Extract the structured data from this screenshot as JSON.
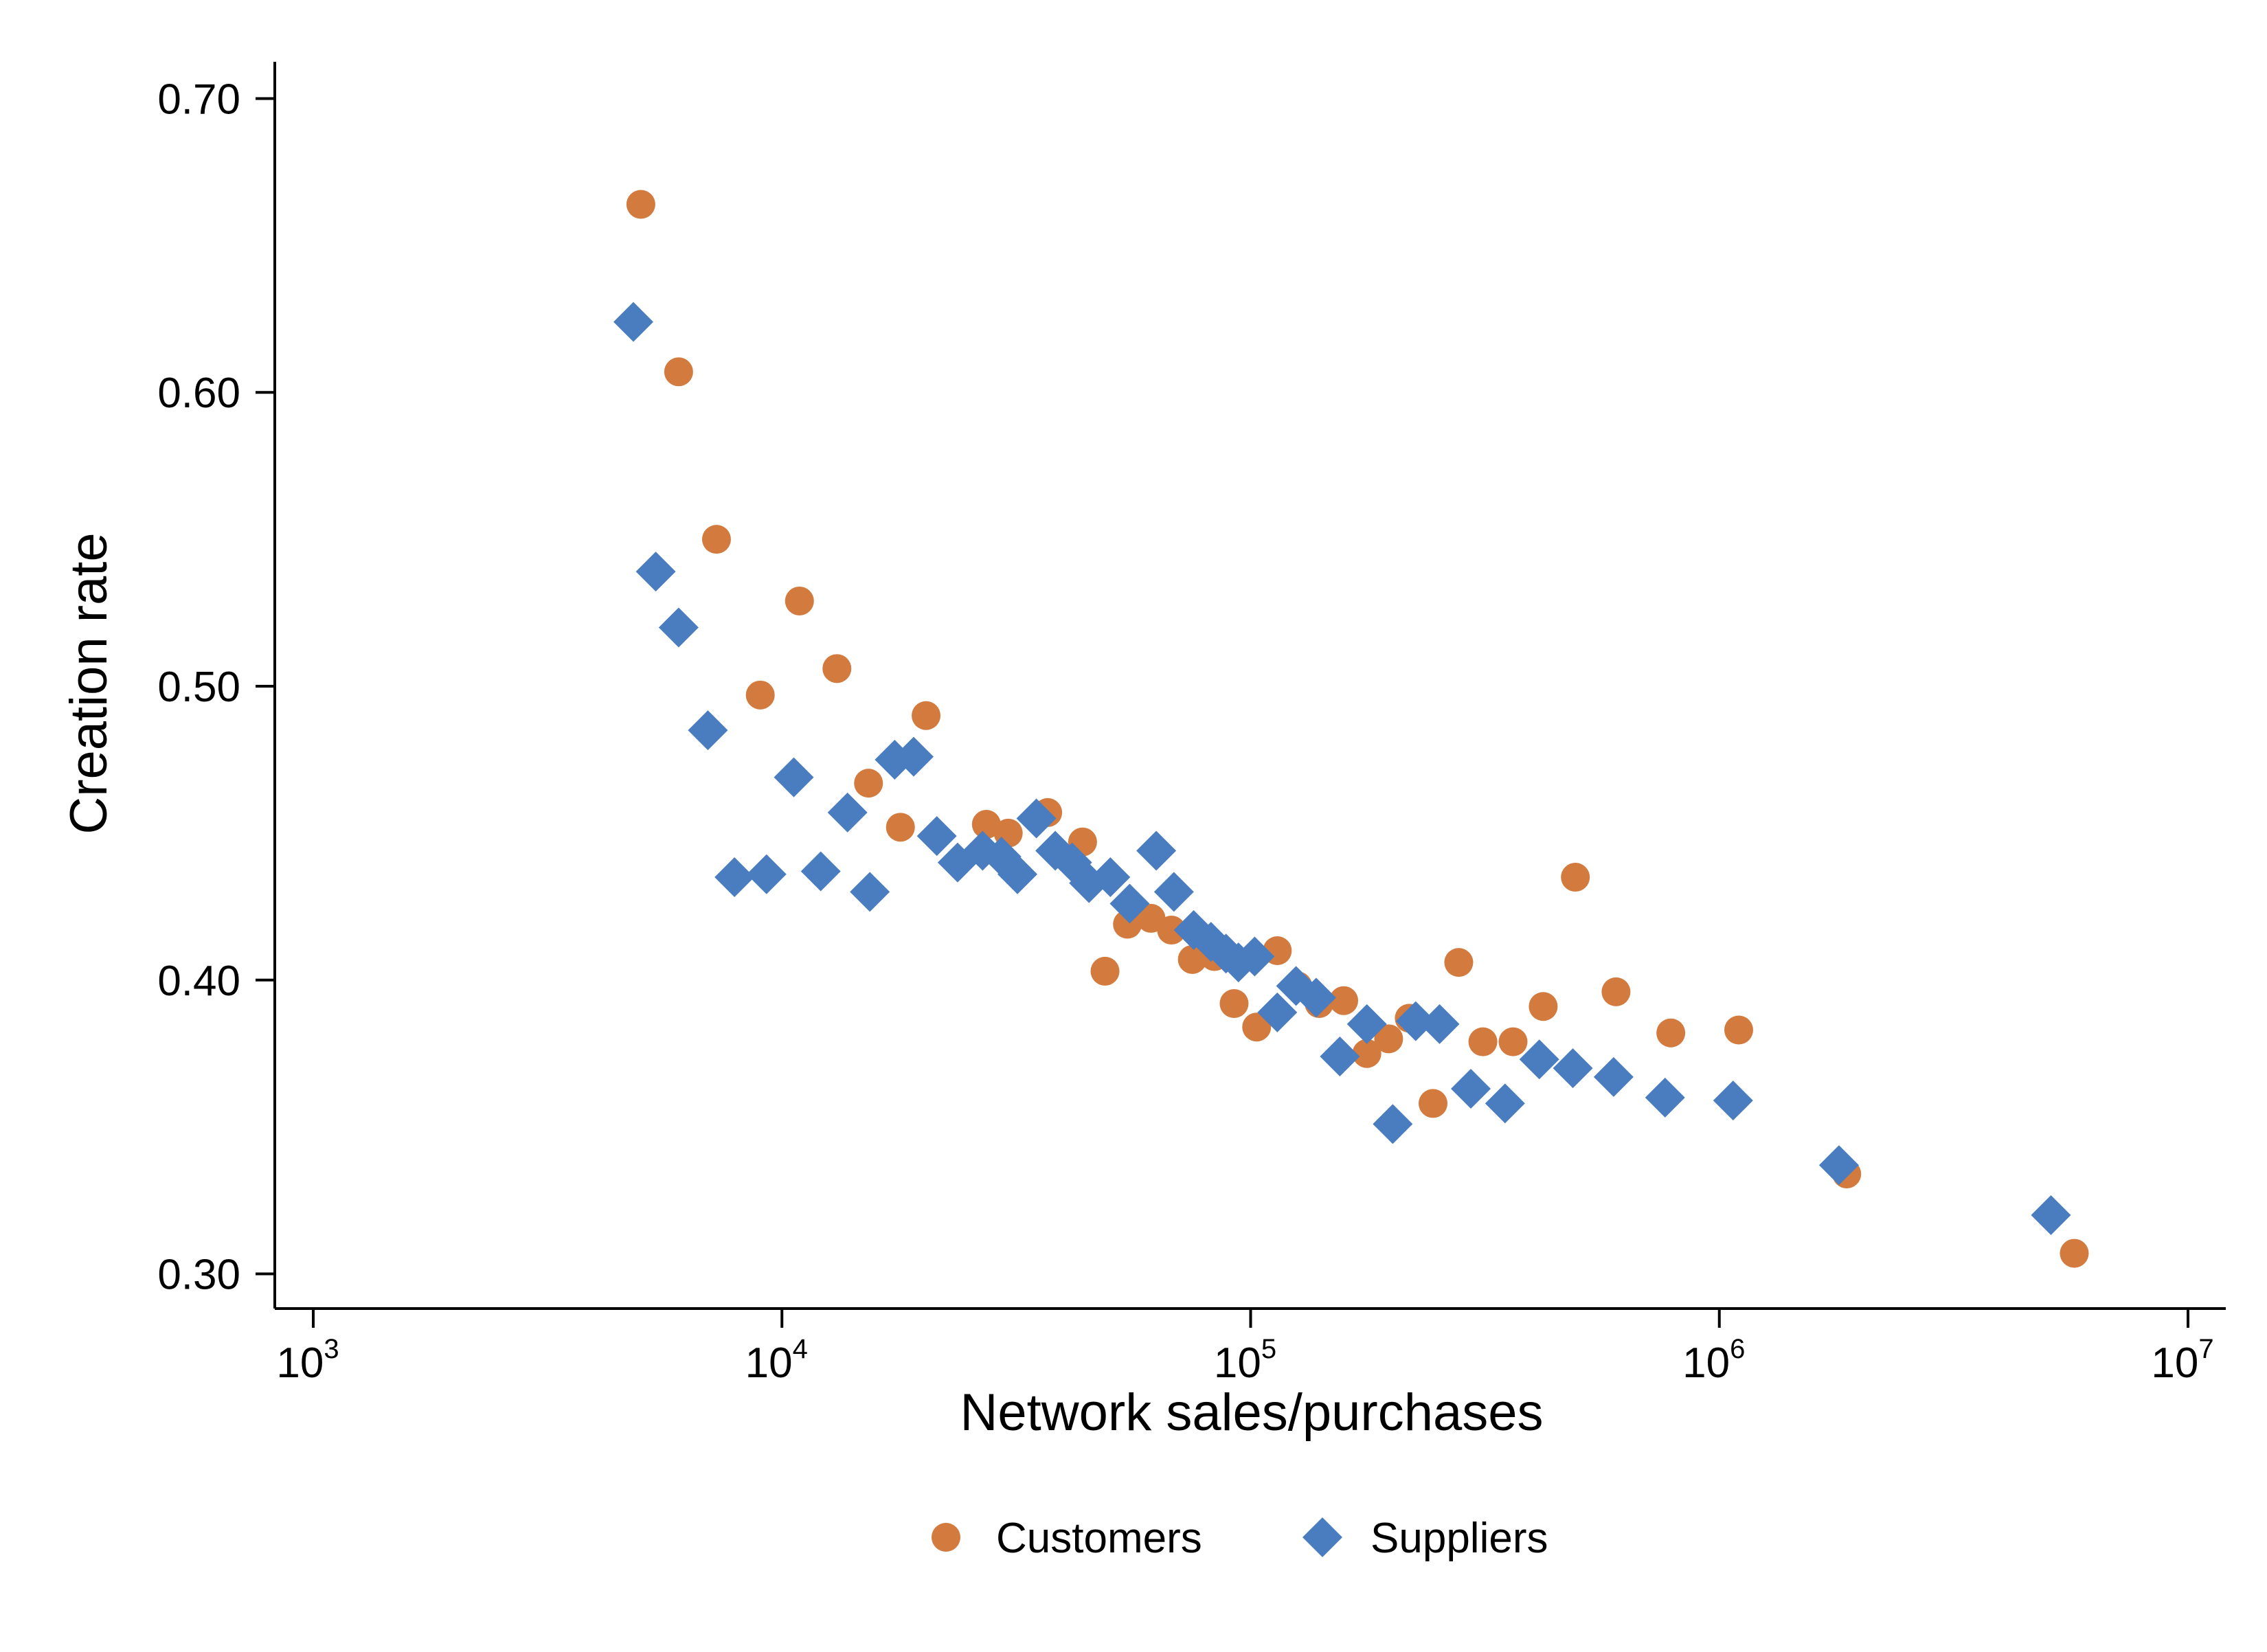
{
  "chart_data": {
    "type": "scatter",
    "xlabel": "Network sales/purchases",
    "ylabel": "Creation rate",
    "xscale": "log",
    "xlim": [
      1000,
      10000000
    ],
    "ylim": [
      0.2882,
      0.7125
    ],
    "x_ticks": [
      {
        "value": 1000,
        "base": "10",
        "exp": "3"
      },
      {
        "value": 10000,
        "base": "10",
        "exp": "4"
      },
      {
        "value": 100000,
        "base": "10",
        "exp": "5"
      },
      {
        "value": 1000000,
        "base": "10",
        "exp": "6"
      },
      {
        "value": 10000000,
        "base": "10",
        "exp": "7"
      }
    ],
    "y_ticks": [
      {
        "value": 0.3,
        "label": "0.30"
      },
      {
        "value": 0.4,
        "label": "0.40"
      },
      {
        "value": 0.5,
        "label": "0.50"
      },
      {
        "value": 0.6,
        "label": "0.60"
      },
      {
        "value": 0.7,
        "label": "0.70"
      }
    ],
    "grid": false,
    "legend_position": "bottom-center",
    "series": [
      {
        "name": "Customers",
        "marker": "circle",
        "color": "#D37A3E",
        "points": [
          [
            5000,
            0.664
          ],
          [
            6020,
            0.607
          ],
          [
            7250,
            0.55
          ],
          [
            8990,
            0.497
          ],
          [
            10900,
            0.529
          ],
          [
            13100,
            0.506
          ],
          [
            15300,
            0.467
          ],
          [
            17900,
            0.452
          ],
          [
            20300,
            0.49
          ],
          [
            27300,
            0.453
          ],
          [
            30400,
            0.45
          ],
          [
            36900,
            0.457
          ],
          [
            43800,
            0.447
          ],
          [
            48900,
            0.403
          ],
          [
            54600,
            0.419
          ],
          [
            61300,
            0.421
          ],
          [
            67800,
            0.417
          ],
          [
            75100,
            0.407
          ],
          [
            83700,
            0.408
          ],
          [
            92200,
            0.392
          ],
          [
            103000,
            0.384
          ],
          [
            114000,
            0.41
          ],
          [
            126000,
            0.398
          ],
          [
            140000,
            0.392
          ],
          [
            158000,
            0.393
          ],
          [
            177000,
            0.375
          ],
          [
            197000,
            0.38
          ],
          [
            218000,
            0.387
          ],
          [
            245000,
            0.358
          ],
          [
            278000,
            0.406
          ],
          [
            313000,
            0.379
          ],
          [
            363000,
            0.379
          ],
          [
            421000,
            0.391
          ],
          [
            493000,
            0.435
          ],
          [
            602000,
            0.396
          ],
          [
            788000,
            0.382
          ],
          [
            1100000,
            0.383
          ],
          [
            1870000,
            0.334
          ],
          [
            5720000,
            0.307
          ]
        ]
      },
      {
        "name": "Suppliers",
        "marker": "diamond",
        "color": "#4A7DBF",
        "points": [
          [
            4820,
            0.624
          ],
          [
            5380,
            0.539
          ],
          [
            6020,
            0.52
          ],
          [
            6950,
            0.485
          ],
          [
            7920,
            0.435
          ],
          [
            9270,
            0.436
          ],
          [
            10600,
            0.469
          ],
          [
            12100,
            0.437
          ],
          [
            13800,
            0.457
          ],
          [
            15400,
            0.43
          ],
          [
            17400,
            0.475
          ],
          [
            19100,
            0.476
          ],
          [
            21400,
            0.449
          ],
          [
            23700,
            0.44
          ],
          [
            26800,
            0.444
          ],
          [
            29400,
            0.442
          ],
          [
            31800,
            0.436
          ],
          [
            34900,
            0.455
          ],
          [
            38300,
            0.444
          ],
          [
            41600,
            0.44
          ],
          [
            45200,
            0.433
          ],
          [
            50200,
            0.435
          ],
          [
            55200,
            0.426
          ],
          [
            62900,
            0.444
          ],
          [
            68600,
            0.43
          ],
          [
            75600,
            0.417
          ],
          [
            82300,
            0.413
          ],
          [
            88600,
            0.409
          ],
          [
            94200,
            0.406
          ],
          [
            102000,
            0.408
          ],
          [
            114000,
            0.389
          ],
          [
            125000,
            0.398
          ],
          [
            138000,
            0.394
          ],
          [
            155000,
            0.374
          ],
          [
            177000,
            0.385
          ],
          [
            201000,
            0.351
          ],
          [
            225000,
            0.386
          ],
          [
            253000,
            0.385
          ],
          [
            295000,
            0.363
          ],
          [
            349000,
            0.358
          ],
          [
            413000,
            0.373
          ],
          [
            487000,
            0.37
          ],
          [
            595000,
            0.367
          ],
          [
            766000,
            0.36
          ],
          [
            1070000,
            0.359
          ],
          [
            1800000,
            0.337
          ],
          [
            5100000,
            0.32
          ]
        ]
      }
    ]
  }
}
